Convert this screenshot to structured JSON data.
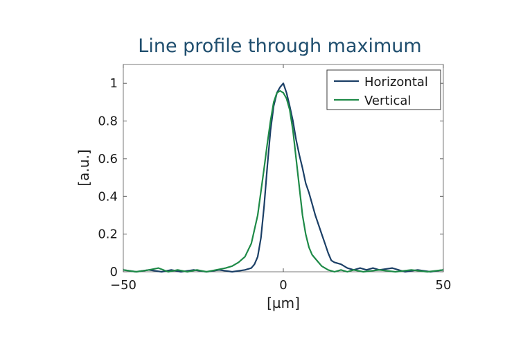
{
  "chart_data": {
    "type": "line",
    "title": "Line profile through maximum",
    "xlabel": "[µm]",
    "ylabel": "[a.u.]",
    "xlim": [
      -50,
      50
    ],
    "ylim": [
      0,
      1.1
    ],
    "xticks": [
      -50,
      0,
      50
    ],
    "xtick_labels": [
      "−50",
      "0",
      "50"
    ],
    "yticks": [
      0,
      0.2,
      0.4,
      0.6,
      0.8,
      1
    ],
    "ytick_labels": [
      "0",
      "0.2",
      "0.4",
      "0.6",
      "0.8",
      "1"
    ],
    "grid": false,
    "legend_position": "top-right",
    "series": [
      {
        "name": "Horizontal",
        "color": "#1b3f66",
        "x": [
          -50,
          -46,
          -42,
          -38,
          -35,
          -32,
          -28,
          -24,
          -20,
          -16,
          -12,
          -10,
          -9,
          -8,
          -7,
          -6,
          -5,
          -4,
          -3,
          -2,
          -1,
          0,
          1,
          2,
          3,
          4,
          5,
          6,
          7,
          8,
          9,
          10,
          11,
          12,
          13,
          14,
          15,
          16,
          18,
          20,
          22,
          24,
          26,
          28,
          30,
          34,
          38,
          42,
          46,
          50
        ],
        "y": [
          0.01,
          0.0,
          0.01,
          0.0,
          0.01,
          0.0,
          0.01,
          0.0,
          0.01,
          0.0,
          0.01,
          0.02,
          0.04,
          0.08,
          0.18,
          0.35,
          0.56,
          0.75,
          0.88,
          0.95,
          0.98,
          1.0,
          0.95,
          0.88,
          0.8,
          0.7,
          0.62,
          0.55,
          0.47,
          0.42,
          0.36,
          0.3,
          0.25,
          0.2,
          0.15,
          0.1,
          0.06,
          0.05,
          0.04,
          0.02,
          0.01,
          0.02,
          0.01,
          0.02,
          0.01,
          0.02,
          0.0,
          0.01,
          0.0,
          0.01
        ]
      },
      {
        "name": "Vertical",
        "color": "#1e8a47",
        "x": [
          -50,
          -46,
          -42,
          -39,
          -36,
          -33,
          -30,
          -27,
          -24,
          -21,
          -18,
          -16,
          -14,
          -12,
          -10,
          -8,
          -6,
          -5,
          -4,
          -3,
          -2,
          -1,
          0,
          1,
          2,
          3,
          4,
          5,
          6,
          7,
          8,
          9,
          10,
          11,
          12,
          13,
          14,
          16,
          18,
          20,
          22,
          25,
          30,
          35,
          40,
          45,
          50
        ],
        "y": [
          0.01,
          0.0,
          0.01,
          0.02,
          0.0,
          0.01,
          0.0,
          0.01,
          0.0,
          0.01,
          0.02,
          0.03,
          0.05,
          0.08,
          0.15,
          0.3,
          0.55,
          0.68,
          0.8,
          0.9,
          0.95,
          0.96,
          0.95,
          0.92,
          0.86,
          0.75,
          0.6,
          0.45,
          0.3,
          0.2,
          0.13,
          0.09,
          0.07,
          0.05,
          0.03,
          0.02,
          0.01,
          0.0,
          0.01,
          0.0,
          0.01,
          0.0,
          0.01,
          0.0,
          0.01,
          0.0,
          0.01
        ]
      }
    ]
  }
}
